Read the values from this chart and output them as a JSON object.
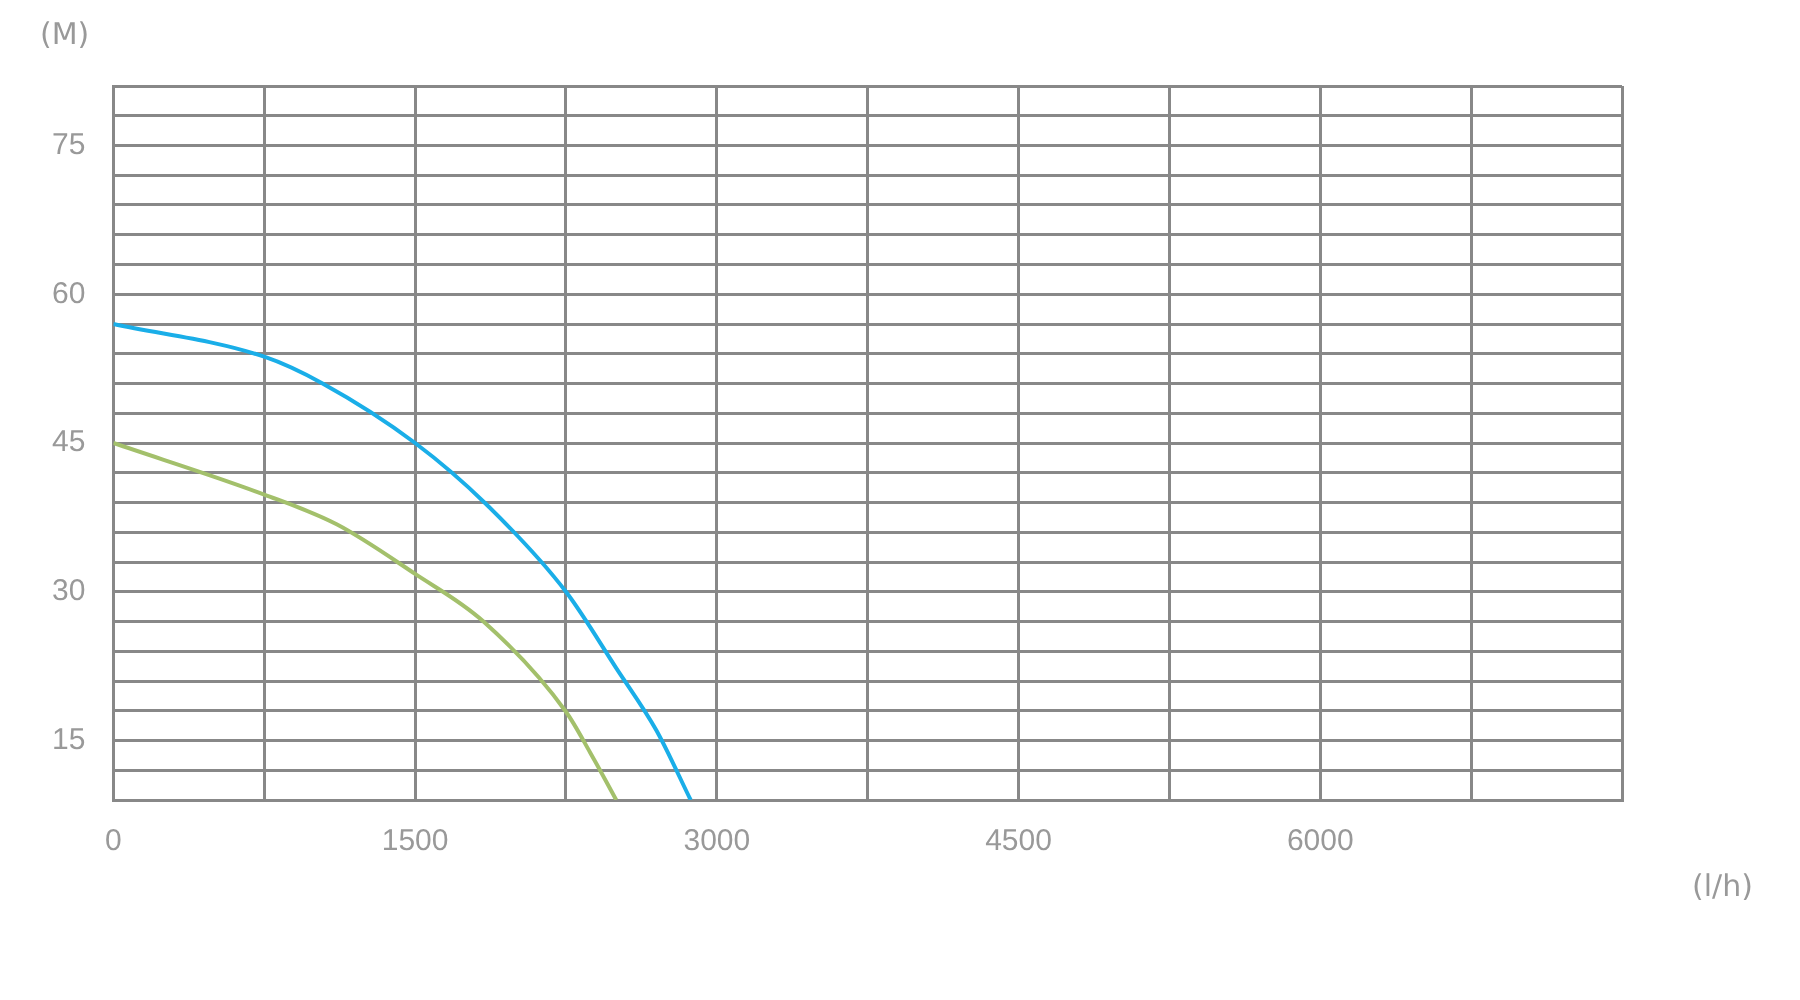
{
  "chart_data": {
    "type": "line",
    "xlabel": "(l/h)",
    "ylabel": "(M)",
    "xlim": [
      0,
      7500
    ],
    "xticks": [
      {
        "value": 0,
        "label": "0"
      },
      {
        "value": 750,
        "label": null
      },
      1500,
      {
        "value": 2250,
        "label": null
      },
      3000,
      {
        "value": 3750,
        "label": null
      },
      4500,
      {
        "value": 5250,
        "label": null
      },
      6000,
      {
        "value": 6750,
        "label": null
      },
      {
        "value": 7500,
        "label": null
      }
    ],
    "ylim": [
      9,
      81
    ],
    "yticks": [
      {
        "value": 9,
        "label": null
      },
      {
        "value": 12,
        "label": null
      },
      15,
      {
        "value": 18,
        "label": null
      },
      {
        "value": 21,
        "label": null
      },
      {
        "value": 24,
        "label": null
      },
      {
        "value": 27,
        "label": null
      },
      30,
      {
        "value": 33,
        "label": null
      },
      {
        "value": 36,
        "label": null
      },
      {
        "value": 39,
        "label": null
      },
      {
        "value": 42,
        "label": null
      },
      45,
      {
        "value": 48,
        "label": null
      },
      {
        "value": 51,
        "label": null
      },
      {
        "value": 54,
        "label": null
      },
      {
        "value": 57,
        "label": null
      },
      60,
      {
        "value": 63,
        "label": null
      },
      {
        "value": 66,
        "label": null
      },
      {
        "value": 69,
        "label": null
      },
      {
        "value": 72,
        "label": null
      },
      75,
      {
        "value": 78,
        "label": null
      },
      {
        "value": 81,
        "label": null
      }
    ],
    "grid": true,
    "legend": false,
    "marker": "none",
    "line_style": "solid",
    "series": [
      {
        "color": "#a3c06b",
        "x": [
          0,
          750,
          1110,
          1500,
          1840,
          2250,
          2370,
          2500
        ],
        "values": [
          45,
          39.8,
          36.8,
          31.8,
          27,
          17.9,
          13.8,
          9
        ]
      },
      {
        "color": "#1aaee8",
        "x": [
          0,
          750,
          1040,
          1500,
          1850,
          2250,
          2500,
          2700,
          2870
        ],
        "values": [
          57,
          53.7,
          51,
          45,
          38.9,
          30,
          22.3,
          16,
          9
        ]
      }
    ]
  }
}
